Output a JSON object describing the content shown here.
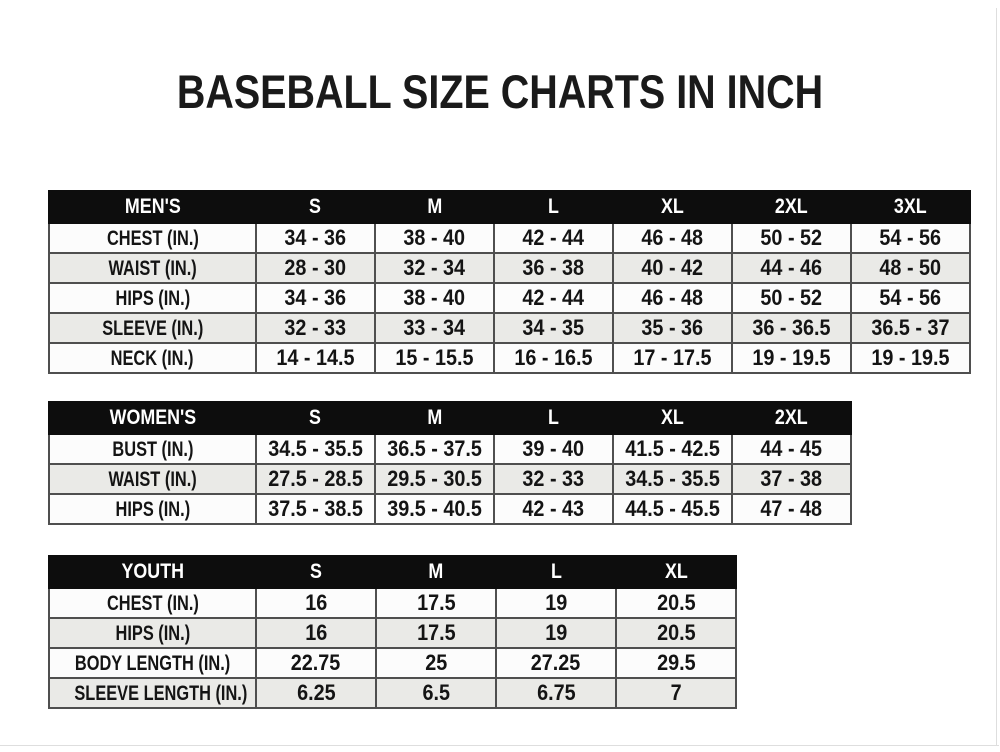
{
  "title": "BASEBALL SIZE CHARTS IN INCH",
  "colors": {
    "header_bg": "#0d0d0d",
    "header_text": "#ffffff",
    "row_white": "#fcfcfc",
    "row_stripe": "#eaeae7",
    "border": "#4f4f4f",
    "title_text": "#1a1a1a"
  },
  "chart_data": [
    {
      "type": "table",
      "id": "mens",
      "name": "Men's baseball sizes (inches)",
      "columns": [
        "MEN'S",
        "S",
        "M",
        "L",
        "XL",
        "2XL",
        "3XL"
      ],
      "rows": [
        [
          "CHEST (IN.)",
          "34 - 36",
          "38 - 40",
          "42 - 44",
          "46 - 48",
          "50 - 52",
          "54 - 56"
        ],
        [
          "WAIST (IN.)",
          "28 - 30",
          "32 - 34",
          "36 - 38",
          "40 - 42",
          "44 - 46",
          "48 - 50"
        ],
        [
          "HIPS (IN.)",
          "34 - 36",
          "38 - 40",
          "42 - 44",
          "46 - 48",
          "50 - 52",
          "54 - 56"
        ],
        [
          "SLEEVE (IN.)",
          "32 - 33",
          "33 - 34",
          "34 - 35",
          "35 - 36",
          "36 - 36.5",
          "36.5 - 37"
        ],
        [
          "NECK (IN.)",
          "14 - 14.5",
          "15 - 15.5",
          "16 - 16.5",
          "17 - 17.5",
          "19 - 19.5",
          "19 - 19.5"
        ]
      ]
    },
    {
      "type": "table",
      "id": "womens",
      "name": "Women's baseball sizes (inches)",
      "columns": [
        "WOMEN'S",
        "S",
        "M",
        "L",
        "XL",
        "2XL"
      ],
      "rows": [
        [
          "BUST (IN.)",
          "34.5 - 35.5",
          "36.5 - 37.5",
          "39 - 40",
          "41.5 - 42.5",
          "44 - 45"
        ],
        [
          "WAIST (IN.)",
          "27.5 - 28.5",
          "29.5 - 30.5",
          "32 - 33",
          "34.5 - 35.5",
          "37 - 38"
        ],
        [
          "HIPS (IN.)",
          "37.5 - 38.5",
          "39.5 - 40.5",
          "42 - 43",
          "44.5 - 45.5",
          "47 - 48"
        ]
      ]
    },
    {
      "type": "table",
      "id": "youth",
      "name": "Youth baseball sizes (inches)",
      "columns": [
        "YOUTH",
        "S",
        "M",
        "L",
        "XL"
      ],
      "rows": [
        [
          "CHEST (IN.)",
          "16",
          "17.5",
          "19",
          "20.5"
        ],
        [
          "HIPS (IN.)",
          "16",
          "17.5",
          "19",
          "20.5"
        ],
        [
          "BODY LENGTH (IN.)",
          "22.75",
          "25",
          "27.25",
          "29.5"
        ],
        [
          "SLEEVE LENGTH (IN.)",
          "6.25",
          "6.5",
          "6.75",
          "7"
        ]
      ]
    }
  ]
}
